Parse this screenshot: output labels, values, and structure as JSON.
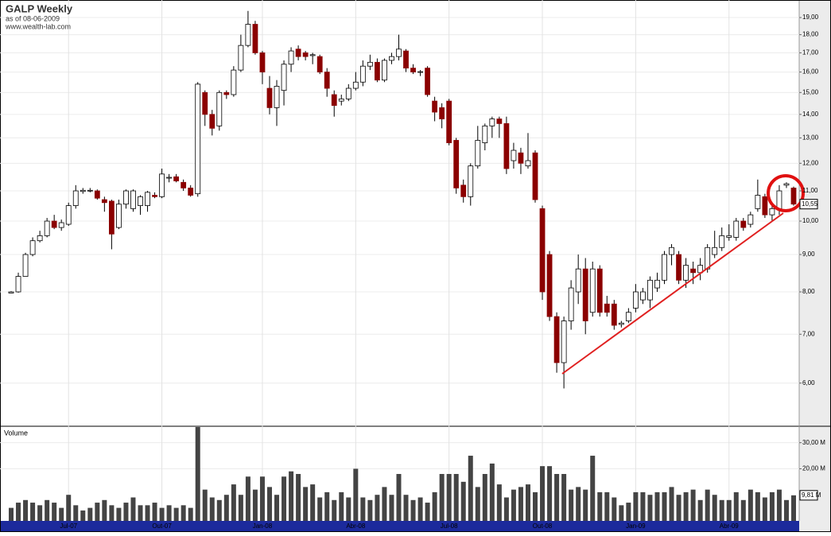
{
  "chart_data": [
    {
      "type": "candlestick",
      "title": "GALP Weekly",
      "subtitle": "as of 08-06-2009",
      "source": "www.wealth-lab.com",
      "log_scale": true,
      "grid": true,
      "up_color": "#ffffff",
      "down_color": "#8b0000",
      "ylim": [
        5.25,
        20.08
      ],
      "yticks": [
        {
          "value": 6,
          "label": "6,00"
        },
        {
          "value": 7,
          "label": "7,00"
        },
        {
          "value": 8,
          "label": "8,00"
        },
        {
          "value": 9,
          "label": "9,00"
        },
        {
          "value": 10,
          "label": "10,00"
        },
        {
          "value": 11,
          "label": "11,00"
        },
        {
          "value": 12,
          "label": "12,00"
        },
        {
          "value": 13,
          "label": "13,00"
        },
        {
          "value": 14,
          "label": "14,00"
        },
        {
          "value": 15,
          "label": "15,00"
        },
        {
          "value": 16,
          "label": "16,00"
        },
        {
          "value": 17,
          "label": "17,00"
        },
        {
          "value": 18,
          "label": "18,00"
        },
        {
          "value": 19,
          "label": "19,00"
        }
      ],
      "last_label": {
        "value": 10.55,
        "label": "10,55"
      },
      "open": [
        7.97,
        8.0,
        8.4,
        9.0,
        9.4,
        9.55,
        10.0,
        9.8,
        9.9,
        10.5,
        10.98,
        11.0,
        11.0,
        10.7,
        10.65,
        9.8,
        10.55,
        10.4,
        10.5,
        10.5,
        10.85,
        10.8,
        11.45,
        11.5,
        11.3,
        11.1,
        10.9,
        15.0,
        14.0,
        13.5,
        15.0,
        14.9,
        16.1,
        17.4,
        18.6,
        17.0,
        15.2,
        14.3,
        15.1,
        16.4,
        17.2,
        17.0,
        16.85,
        16.8,
        16.0,
        14.9,
        14.6,
        14.7,
        15.2,
        15.5,
        16.3,
        16.5,
        15.6,
        16.6,
        16.8,
        17.1,
        16.2,
        16.0,
        16.2,
        14.6,
        14.3,
        14.6,
        12.9,
        11.2,
        10.8,
        11.9,
        12.8,
        13.5,
        13.8,
        13.6,
        12.1,
        12.4,
        11.9,
        12.4,
        10.4,
        9.0,
        7.4,
        6.4,
        7.3,
        8.0,
        8.6,
        7.5,
        8.6,
        7.7,
        7.7,
        7.22,
        7.3,
        7.6,
        7.8,
        7.8,
        8.1,
        8.3,
        9.0,
        9.0,
        8.3,
        8.6,
        8.5,
        8.6,
        9.0,
        9.2,
        9.5,
        9.5,
        10.0,
        9.9,
        10.4,
        10.8,
        10.2,
        10.4,
        11.2,
        11.1
      ],
      "high": [
        8.02,
        8.5,
        9.05,
        9.5,
        9.7,
        10.1,
        10.2,
        10.05,
        10.6,
        11.2,
        11.1,
        11.1,
        11.05,
        10.8,
        10.7,
        10.7,
        11.05,
        11.05,
        10.85,
        11.0,
        10.95,
        11.8,
        11.6,
        11.6,
        11.4,
        11.2,
        15.5,
        15.1,
        14.2,
        15.1,
        15.1,
        16.3,
        18.0,
        19.4,
        18.8,
        17.1,
        15.8,
        15.6,
        16.6,
        17.3,
        17.4,
        17.1,
        17.0,
        16.9,
        16.2,
        15.1,
        14.9,
        15.4,
        16.0,
        16.6,
        16.9,
        16.7,
        16.7,
        17.0,
        18.0,
        17.2,
        16.4,
        16.1,
        16.3,
        14.8,
        14.5,
        14.7,
        13.0,
        11.4,
        12.0,
        13.5,
        13.6,
        13.9,
        13.9,
        13.9,
        12.8,
        12.6,
        13.2,
        12.5,
        10.5,
        9.1,
        7.5,
        7.4,
        8.3,
        9.0,
        8.9,
        8.8,
        8.7,
        7.9,
        7.8,
        7.3,
        7.6,
        8.2,
        8.1,
        8.4,
        8.5,
        9.1,
        9.3,
        9.1,
        8.9,
        8.8,
        8.9,
        9.3,
        9.7,
        9.8,
        9.9,
        10.1,
        10.1,
        10.3,
        11.4,
        10.9,
        10.6,
        11.2,
        11.3,
        11.15
      ],
      "low": [
        7.96,
        7.98,
        8.4,
        8.95,
        9.35,
        9.5,
        9.75,
        9.7,
        9.85,
        10.4,
        10.9,
        10.95,
        10.7,
        10.3,
        9.15,
        9.75,
        10.4,
        10.3,
        10.2,
        10.3,
        10.75,
        10.75,
        11.3,
        11.3,
        11.0,
        10.8,
        10.8,
        13.5,
        13.1,
        13.3,
        14.7,
        14.8,
        16.0,
        17.3,
        16.9,
        15.4,
        14.0,
        13.5,
        14.4,
        16.0,
        16.6,
        16.6,
        16.4,
        15.9,
        14.8,
        13.9,
        14.4,
        14.6,
        15.1,
        15.3,
        16.1,
        15.5,
        15.5,
        16.4,
        16.6,
        16.0,
        15.9,
        15.8,
        14.8,
        13.7,
        13.4,
        12.7,
        10.9,
        10.6,
        10.5,
        11.8,
        12.5,
        13.0,
        13.0,
        11.6,
        11.8,
        11.6,
        11.8,
        10.6,
        7.8,
        7.3,
        6.2,
        5.9,
        7.1,
        7.7,
        7.0,
        7.4,
        7.4,
        7.4,
        7.1,
        7.15,
        7.25,
        7.5,
        7.7,
        7.6,
        8.0,
        8.2,
        8.7,
        8.2,
        8.1,
        8.2,
        8.3,
        8.5,
        8.9,
        9.1,
        9.4,
        9.4,
        9.7,
        9.8,
        10.3,
        10.1,
        10.0,
        10.2,
        11.1,
        10.5
      ],
      "close": [
        8.0,
        8.4,
        9.0,
        9.4,
        9.55,
        10.0,
        9.8,
        9.95,
        10.5,
        11.0,
        11.02,
        11.02,
        10.75,
        10.6,
        9.6,
        10.55,
        11.0,
        11.0,
        10.8,
        10.95,
        10.8,
        11.6,
        11.48,
        11.35,
        11.1,
        10.85,
        15.4,
        14.0,
        13.4,
        15.0,
        14.9,
        16.1,
        17.4,
        18.6,
        17.0,
        16.0,
        14.3,
        15.3,
        16.4,
        17.1,
        16.8,
        16.8,
        16.9,
        16.0,
        15.2,
        14.4,
        14.7,
        15.2,
        15.5,
        16.3,
        16.5,
        15.6,
        16.6,
        16.8,
        17.2,
        16.2,
        16.0,
        16.02,
        14.9,
        14.1,
        13.8,
        12.8,
        11.1,
        10.8,
        11.9,
        12.9,
        13.5,
        13.8,
        13.6,
        11.8,
        12.5,
        12.0,
        12.1,
        10.7,
        8.0,
        7.4,
        6.4,
        7.3,
        8.1,
        8.6,
        7.3,
        8.6,
        7.5,
        7.5,
        7.2,
        7.25,
        7.5,
        8.0,
        8.0,
        8.3,
        8.3,
        9.0,
        9.2,
        8.3,
        8.7,
        8.5,
        8.7,
        9.2,
        9.2,
        9.55,
        9.55,
        10.0,
        9.8,
        10.2,
        10.85,
        10.2,
        10.4,
        11.0,
        11.25,
        10.55
      ]
    },
    {
      "type": "bar",
      "title": "Volume",
      "color": "#444444",
      "ylim": [
        0,
        36
      ],
      "yticks": [
        {
          "value": 20,
          "label": "20,00 M"
        },
        {
          "value": 30,
          "label": "30,00 M"
        }
      ],
      "last_label": {
        "value": 9.81,
        "label": "9,81 M"
      },
      "categories": [
        null,
        null,
        null,
        null,
        null,
        null,
        null,
        null,
        "Jul-07",
        null,
        null,
        null,
        null,
        null,
        null,
        null,
        null,
        null,
        null,
        null,
        null,
        "Out-07",
        null,
        null,
        null,
        null,
        null,
        null,
        null,
        null,
        null,
        null,
        null,
        null,
        null,
        "Jan-08",
        null,
        null,
        null,
        null,
        null,
        null,
        null,
        null,
        null,
        null,
        null,
        null,
        "Abr-08",
        null,
        null,
        null,
        null,
        null,
        null,
        null,
        null,
        null,
        null,
        null,
        null,
        "Jul-08",
        null,
        null,
        null,
        null,
        null,
        null,
        null,
        null,
        null,
        null,
        null,
        null,
        "Out-08",
        null,
        null,
        null,
        null,
        null,
        null,
        null,
        null,
        null,
        null,
        null,
        null,
        "Jan-09",
        null,
        null,
        null,
        null,
        null,
        null,
        null,
        null,
        null,
        null,
        null,
        null,
        "Abr-09",
        null,
        null,
        null,
        null,
        null,
        null,
        null,
        null,
        null
      ],
      "values": [
        5,
        7,
        8,
        7,
        6,
        8,
        7,
        5,
        10,
        6,
        4,
        5,
        7,
        8,
        6,
        5,
        7,
        9,
        6,
        6,
        7,
        5,
        6,
        5,
        6,
        5,
        36,
        12,
        9,
        8,
        10,
        14,
        10,
        17,
        12,
        17,
        13,
        10,
        17,
        19,
        18,
        13,
        14,
        9,
        11,
        8,
        11,
        9,
        20,
        9,
        8,
        10,
        13,
        10,
        18,
        10,
        8,
        9,
        7,
        11,
        18,
        18,
        18,
        15,
        25,
        13,
        18,
        22,
        14,
        9,
        12,
        13,
        14,
        11,
        21,
        21,
        18,
        18,
        12,
        13,
        12,
        25,
        11,
        11,
        9,
        6,
        7,
        11,
        11,
        10,
        11,
        11,
        13,
        10,
        11,
        12,
        8,
        12,
        10,
        8,
        8,
        11,
        8,
        12,
        11,
        9,
        11,
        12,
        8,
        9.81
      ]
    }
  ]
}
